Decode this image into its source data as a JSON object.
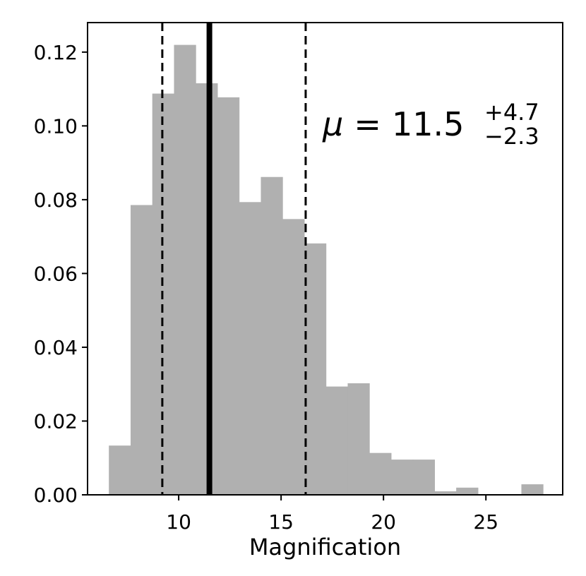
{
  "chart_data": {
    "type": "bar",
    "xlabel": "Magnification",
    "ylabel": "",
    "xlim": [
      5.55,
      28.75
    ],
    "ylim": [
      0,
      0.128
    ],
    "xticks": [
      10,
      15,
      20,
      25
    ],
    "yticks": [
      0.0,
      0.02,
      0.04,
      0.06,
      0.08,
      0.1,
      0.12
    ],
    "ytick_labels": [
      "0.00",
      "0.02",
      "0.04",
      "0.06",
      "0.08",
      "0.10",
      "0.12"
    ],
    "bin_edges": [
      6.6,
      7.66,
      8.72,
      9.78,
      10.84,
      11.9,
      12.96,
      14.02,
      15.08,
      16.14,
      17.2,
      18.26,
      19.32,
      20.38,
      21.44,
      22.5,
      23.56,
      24.62,
      25.68,
      26.74,
      27.8
    ],
    "values": [
      0.0133,
      0.0785,
      0.1087,
      0.1219,
      0.1115,
      0.1077,
      0.0793,
      0.0861,
      0.0747,
      0.0681,
      0.0293,
      0.0302,
      0.0113,
      0.0095,
      0.0095,
      0.0009,
      0.0019,
      0.0,
      0.0,
      0.0028
    ],
    "median": 11.5,
    "lower": 9.2,
    "upper": 16.2,
    "bar_color": "#b0b0b0",
    "annotation": {
      "symbol": "μ",
      "equals": "=",
      "value": "11.5",
      "plus": "+4.7",
      "minus": "−2.3"
    },
    "grid": false
  }
}
